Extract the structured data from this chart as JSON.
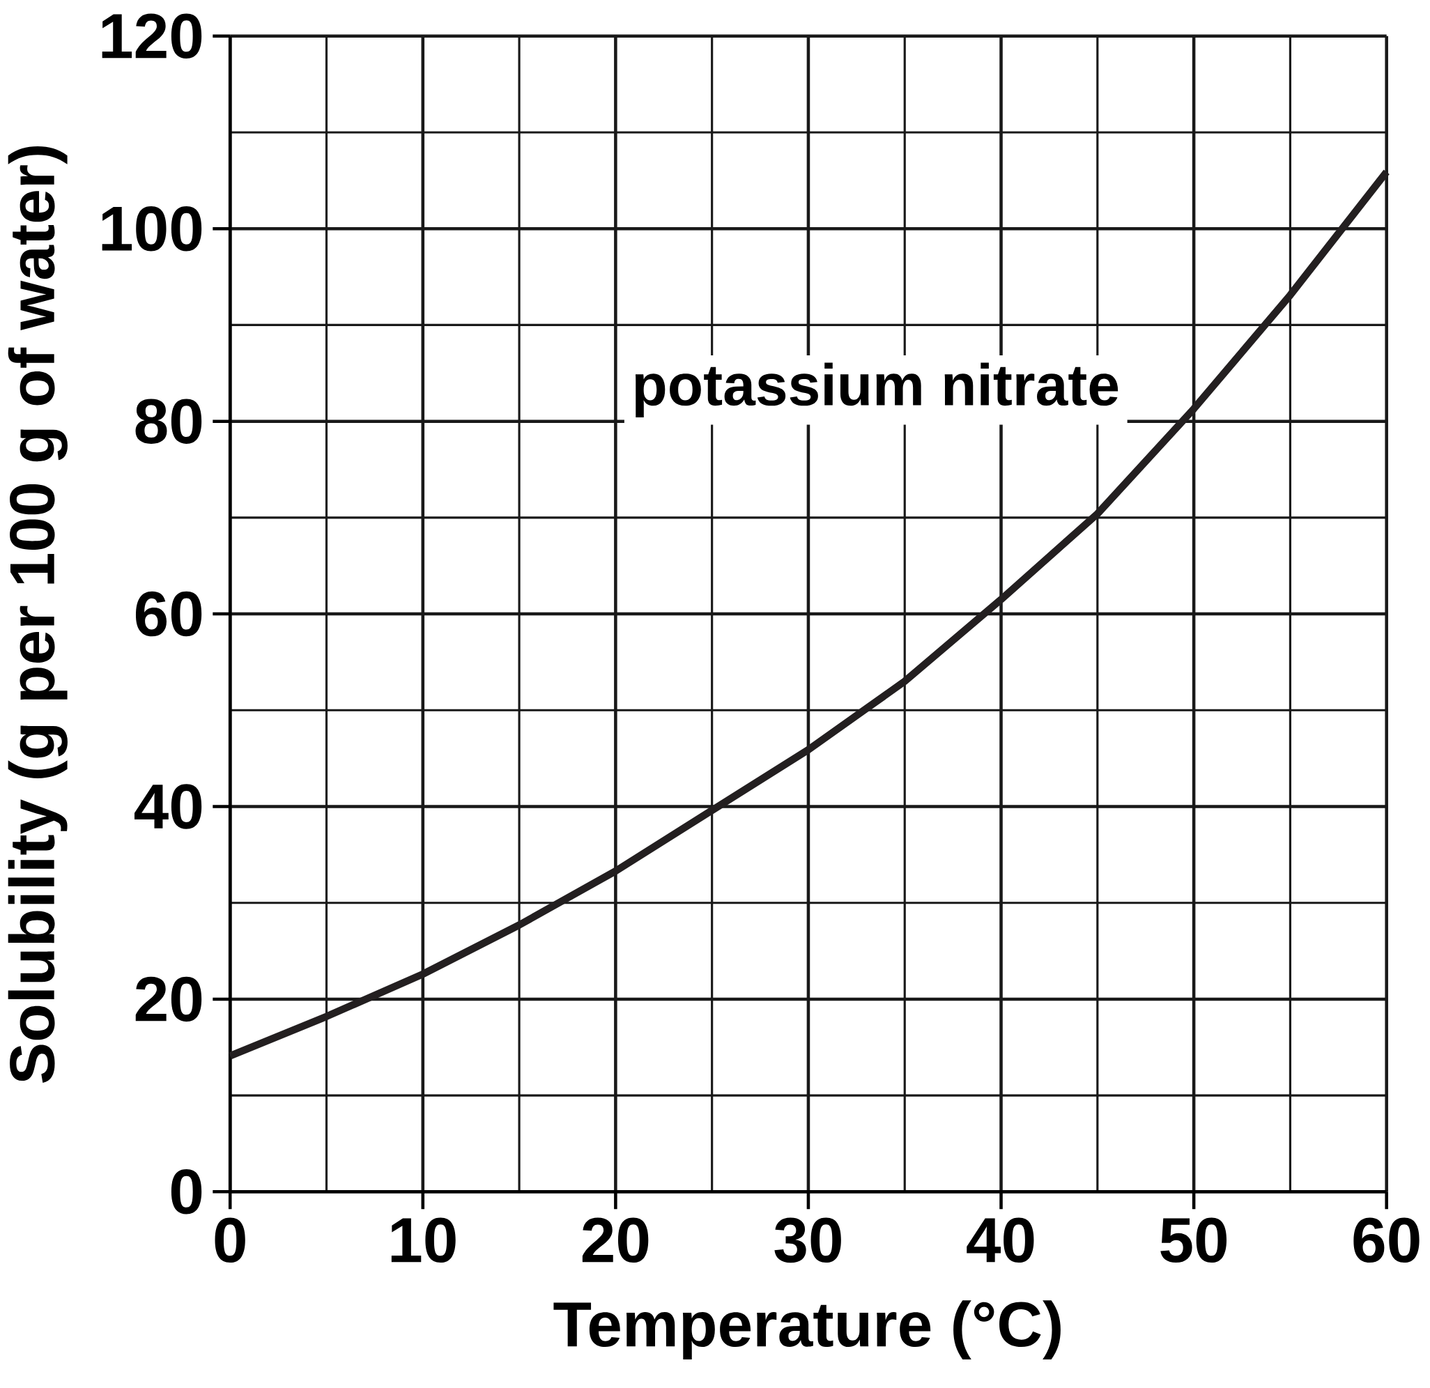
{
  "chart_data": {
    "type": "line",
    "xlabel": "Temperature (°C)",
    "ylabel": "Solubility (g per 100 g of water)",
    "x": [
      0,
      5,
      10,
      15,
      20,
      25,
      30,
      35,
      40,
      45,
      50,
      55,
      60
    ],
    "series": [
      {
        "name": "potassium nitrate",
        "color": "#231f20",
        "values": [
          14.1,
          18.2,
          22.6,
          27.7,
          33.3,
          39.6,
          45.9,
          53.0,
          61.5,
          70.4,
          81.3,
          93.1,
          105.9
        ]
      }
    ],
    "xlim": [
      0,
      60
    ],
    "ylim": [
      0,
      120
    ],
    "xticks": [
      0,
      10,
      20,
      30,
      40,
      50,
      60
    ],
    "yticks": [
      0,
      20,
      40,
      60,
      80,
      100,
      120
    ],
    "grid": true,
    "marker": "none",
    "line_style": "solid"
  }
}
